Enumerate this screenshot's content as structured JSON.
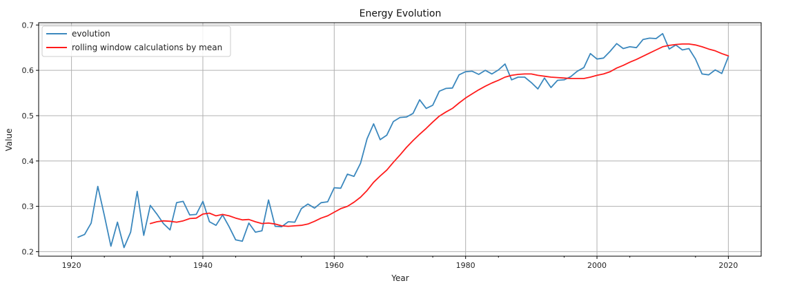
{
  "chart_data": {
    "type": "line",
    "title": "Energy Evolution",
    "xlabel": "Year",
    "ylabel": "Value",
    "xlim": [
      1915,
      2025
    ],
    "ylim": [
      0.19,
      0.705
    ],
    "xticks": [
      1920,
      1940,
      1960,
      1980,
      2000,
      2020
    ],
    "yticks": [
      0.2,
      0.3,
      0.4,
      0.5,
      0.6,
      0.7
    ],
    "grid": true,
    "legend_position": "upper-left",
    "series": [
      {
        "name": "evolution",
        "color": "#3a87bd",
        "x": [
          1921,
          1922,
          1923,
          1924,
          1925,
          1926,
          1927,
          1928,
          1929,
          1930,
          1931,
          1932,
          1933,
          1934,
          1935,
          1936,
          1937,
          1938,
          1939,
          1940,
          1941,
          1942,
          1943,
          1944,
          1945,
          1946,
          1947,
          1948,
          1949,
          1950,
          1951,
          1952,
          1953,
          1954,
          1955,
          1956,
          1957,
          1958,
          1959,
          1960,
          1961,
          1962,
          1963,
          1964,
          1965,
          1966,
          1967,
          1968,
          1969,
          1970,
          1971,
          1972,
          1973,
          1974,
          1975,
          1976,
          1977,
          1978,
          1979,
          1980,
          1981,
          1982,
          1983,
          1984,
          1985,
          1986,
          1987,
          1988,
          1989,
          1990,
          1991,
          1992,
          1993,
          1994,
          1995,
          1996,
          1997,
          1998,
          1999,
          2000,
          2001,
          2002,
          2003,
          2004,
          2005,
          2006,
          2007,
          2008,
          2009,
          2010,
          2011,
          2012,
          2013,
          2014,
          2015,
          2016,
          2017,
          2018,
          2019,
          2020
        ],
        "y": [
          0.232,
          0.238,
          0.263,
          0.344,
          0.28,
          0.212,
          0.265,
          0.209,
          0.243,
          0.333,
          0.236,
          0.302,
          0.283,
          0.262,
          0.248,
          0.308,
          0.311,
          0.281,
          0.282,
          0.311,
          0.266,
          0.258,
          0.281,
          0.255,
          0.226,
          0.223,
          0.263,
          0.243,
          0.246,
          0.314,
          0.256,
          0.255,
          0.266,
          0.265,
          0.295,
          0.305,
          0.296,
          0.308,
          0.31,
          0.341,
          0.34,
          0.371,
          0.366,
          0.395,
          0.449,
          0.482,
          0.447,
          0.457,
          0.487,
          0.496,
          0.497,
          0.505,
          0.535,
          0.516,
          0.523,
          0.554,
          0.56,
          0.561,
          0.59,
          0.597,
          0.598,
          0.591,
          0.6,
          0.592,
          0.601,
          0.614,
          0.579,
          0.585,
          0.585,
          0.573,
          0.559,
          0.583,
          0.562,
          0.578,
          0.579,
          0.586,
          0.598,
          0.606,
          0.637,
          0.625,
          0.627,
          0.642,
          0.659,
          0.648,
          0.652,
          0.65,
          0.668,
          0.671,
          0.67,
          0.681,
          0.647,
          0.656,
          0.645,
          0.648,
          0.625,
          0.592,
          0.59,
          0.601,
          0.593,
          0.63
        ]
      },
      {
        "name": "rolling window calculations by mean",
        "color": "#ff1a1a",
        "x": [
          1932,
          1933,
          1934,
          1935,
          1936,
          1937,
          1938,
          1939,
          1940,
          1941,
          1942,
          1943,
          1944,
          1945,
          1946,
          1947,
          1948,
          1949,
          1950,
          1951,
          1952,
          1953,
          1954,
          1955,
          1956,
          1957,
          1958,
          1959,
          1960,
          1961,
          1962,
          1963,
          1964,
          1965,
          1966,
          1967,
          1968,
          1969,
          1970,
          1971,
          1972,
          1973,
          1974,
          1975,
          1976,
          1977,
          1978,
          1979,
          1980,
          1981,
          1982,
          1983,
          1984,
          1985,
          1986,
          1987,
          1988,
          1989,
          1990,
          1991,
          1992,
          1993,
          1994,
          1995,
          1996,
          1997,
          1998,
          1999,
          2000,
          2001,
          2002,
          2003,
          2004,
          2005,
          2006,
          2007,
          2008,
          2009,
          2010,
          2011,
          2012,
          2013,
          2014,
          2015,
          2016,
          2017,
          2018,
          2019,
          2020
        ],
        "y": [
          0.262,
          0.266,
          0.268,
          0.267,
          0.265,
          0.268,
          0.273,
          0.274,
          0.283,
          0.285,
          0.279,
          0.282,
          0.279,
          0.274,
          0.27,
          0.271,
          0.266,
          0.262,
          0.263,
          0.261,
          0.257,
          0.256,
          0.257,
          0.258,
          0.261,
          0.267,
          0.274,
          0.279,
          0.287,
          0.295,
          0.3,
          0.309,
          0.32,
          0.335,
          0.353,
          0.367,
          0.38,
          0.397,
          0.413,
          0.43,
          0.445,
          0.459,
          0.472,
          0.486,
          0.499,
          0.508,
          0.516,
          0.528,
          0.539,
          0.548,
          0.557,
          0.565,
          0.572,
          0.578,
          0.585,
          0.589,
          0.591,
          0.592,
          0.592,
          0.589,
          0.587,
          0.585,
          0.584,
          0.583,
          0.582,
          0.582,
          0.582,
          0.585,
          0.589,
          0.592,
          0.597,
          0.605,
          0.611,
          0.618,
          0.624,
          0.631,
          0.638,
          0.645,
          0.652,
          0.655,
          0.657,
          0.658,
          0.658,
          0.656,
          0.652,
          0.647,
          0.643,
          0.637,
          0.632
        ]
      }
    ]
  }
}
